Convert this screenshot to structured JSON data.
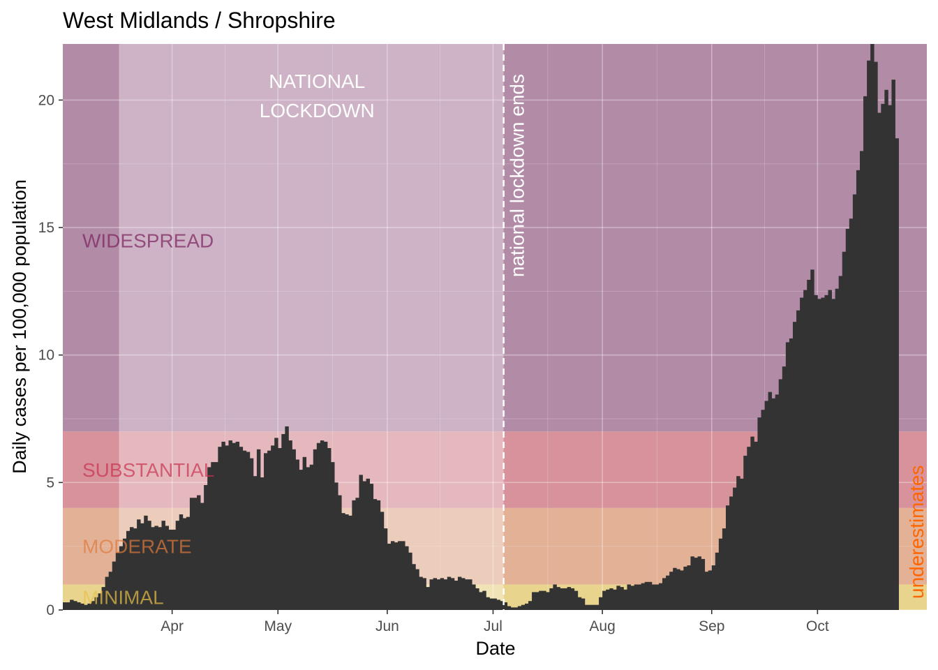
{
  "chart_data": {
    "type": "bar",
    "title": "West Midlands / Shropshire",
    "xlabel": "Date",
    "ylabel": "Daily cases per 100,000 population",
    "x_start": "2020-03-01",
    "x_end": "2020-10-31",
    "ylim": [
      0,
      22.2
    ],
    "y_ticks": [
      0,
      5,
      10,
      15,
      20
    ],
    "x_ticks": [
      {
        "date": "2020-04-01",
        "label": "Apr"
      },
      {
        "date": "2020-05-01",
        "label": "May"
      },
      {
        "date": "2020-06-01",
        "label": "Jun"
      },
      {
        "date": "2020-07-01",
        "label": "Jul"
      },
      {
        "date": "2020-08-01",
        "label": "Aug"
      },
      {
        "date": "2020-09-01",
        "label": "Sep"
      },
      {
        "date": "2020-10-01",
        "label": "Oct"
      }
    ],
    "grid": true,
    "bar_color": "#333333",
    "bands": [
      {
        "label": "MINIMAL",
        "from": 0,
        "to": 1,
        "color": "#e9d48e",
        "label_color": "#e8c148"
      },
      {
        "label": "MODERATE",
        "from": 1,
        "to": 4,
        "color": "#e2b196",
        "label_color": "#e07a3c"
      },
      {
        "label": "SUBSTANTIAL",
        "from": 4,
        "to": 7,
        "color": "#d7929b",
        "label_color": "#c9304e"
      },
      {
        "label": "WIDESPREAD",
        "from": 7,
        "to": 22.2,
        "color": "#b28ba7",
        "label_color": "#7a1f5c"
      }
    ],
    "lockdown": {
      "start": "2020-03-17",
      "end": "2020-07-04",
      "label_line1": "NATIONAL",
      "label_line2": "LOCKDOWN",
      "overlay_color": "#ffffff"
    },
    "lockdown_end_label": "national lockdown ends",
    "underestimate_label": "underestimates",
    "underestimate_color": "#ff6600",
    "series": [
      {
        "start_date": "2020-03-01",
        "values": [
          0.3,
          0.3,
          0.4,
          0.35,
          0.3,
          0.25,
          0.2,
          0.25,
          0.35,
          0.5,
          0.65,
          0.9,
          1.3,
          1.5,
          1.9,
          2.25,
          2.5,
          2.8,
          3.1,
          3.25,
          3.2,
          3.55,
          3.4,
          3.7,
          3.5,
          3.25,
          3.3,
          3.25,
          3.5,
          3.3,
          3.15,
          3.15,
          3.5,
          3.75,
          3.6,
          3.65,
          4.4,
          4.4,
          4.5,
          4.2,
          4.9,
          5.6,
          5.8,
          5.8,
          6.4,
          6.6,
          6.45,
          6.65,
          6.55,
          6.6,
          6.4,
          6.25,
          6.2,
          5.95,
          5.25,
          6.3,
          5.2,
          6.15,
          6.25,
          6.45,
          6.75,
          6.35,
          6.9,
          7.2,
          6.65,
          6.3,
          5.9,
          5.5,
          6.0,
          5.6,
          5.7,
          6.3,
          6.55,
          6.65,
          6.6,
          6.35,
          5.8,
          5.0,
          4.5,
          3.8,
          3.75,
          3.7,
          4.3,
          4.4,
          5.3,
          5.05,
          5.15,
          4.95,
          4.35,
          4.3,
          3.85,
          3.2,
          2.6,
          2.7,
          2.65,
          2.7,
          2.7,
          2.5,
          2.25,
          1.8,
          1.6,
          1.3,
          1.25,
          0.9,
          1.2,
          1.25,
          1.2,
          1.25,
          1.2,
          1.3,
          1.25,
          1.15,
          1.3,
          1.25,
          1.2,
          1.2,
          1.0,
          0.85,
          0.7,
          0.75,
          0.5,
          0.45,
          0.45,
          0.4,
          0.35,
          0.3,
          0.15,
          0.1,
          0.1,
          0.15,
          0.2,
          0.25,
          0.35,
          0.7,
          0.7,
          0.75,
          0.75,
          0.7,
          0.85,
          1.0,
          0.9,
          0.85,
          0.85,
          0.9,
          0.85,
          0.75,
          0.5,
          0.45,
          0.2,
          0.2,
          0.2,
          0.2,
          0.5,
          0.75,
          0.8,
          0.85,
          0.8,
          0.95,
          0.9,
          0.8,
          1.0,
          0.95,
          1.0,
          1.0,
          1.05,
          1.1,
          1.1,
          1.0,
          1.0,
          1.05,
          1.25,
          1.35,
          1.5,
          1.65,
          1.6,
          1.55,
          1.7,
          1.75,
          2.1,
          2.05,
          2.1,
          2.0,
          1.5,
          1.55,
          1.75,
          2.25,
          2.8,
          3.2,
          4.1,
          4.45,
          4.8,
          5.25,
          5.15,
          6.05,
          6.4,
          6.8,
          6.6,
          7.55,
          7.85,
          8.2,
          8.55,
          8.3,
          8.45,
          9.05,
          9.55,
          10.5,
          10.65,
          11.3,
          11.75,
          12.25,
          12.55,
          12.95,
          13.35,
          12.35,
          12.2,
          12.25,
          12.35,
          12.55,
          12.2,
          12.6,
          13.1,
          14.05,
          14.95,
          15.35,
          16.3,
          17.25,
          18.0,
          20.15,
          21.55,
          22.2,
          21.5,
          19.5,
          19.85,
          20.4,
          19.8,
          20.8,
          18.5
        ]
      }
    ]
  }
}
